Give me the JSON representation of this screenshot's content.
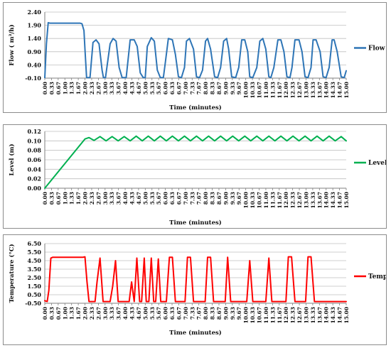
{
  "chart_data": [
    {
      "type": "line",
      "ylabel": "Flow ( m³/h)",
      "xlabel": "Time (minutes)",
      "yticks": [
        "2.40",
        "1.90",
        "1.40",
        "0.90",
        "0.40",
        "-0.10"
      ],
      "ylim": [
        -0.1,
        2.4
      ],
      "xlim": [
        0,
        15
      ],
      "xticks": [
        "0.00",
        "0.33",
        "0.67",
        "1.00",
        "1.33",
        "1.67",
        "2.00",
        "2.33",
        "2.67",
        "3.00",
        "3.33",
        "3.67",
        "4.00",
        "4.33",
        "4.67",
        "5.00",
        "5.33",
        "5.67",
        "6.00",
        "6.33",
        "6.67",
        "7.00",
        "7.33",
        "7.67",
        "8.00",
        "8.33",
        "8.67",
        "9.00",
        "9.33",
        "9.67",
        "10.00",
        "10.33",
        "10.67",
        "11.00",
        "11.33",
        "11.67",
        "12.00",
        "12.33",
        "12.67",
        "13.00",
        "13.33",
        "13.67",
        "14.00",
        "14.33",
        "14.67",
        "15.00"
      ],
      "legend_position": "right",
      "series": [
        {
          "name": "Flow",
          "color": "#2e75b6",
          "x": [
            0.0,
            0.08,
            0.17,
            0.25,
            1.75,
            1.85,
            1.95,
            2.0,
            2.08,
            2.25,
            2.4,
            2.55,
            2.7,
            2.85,
            2.92,
            3.02,
            3.25,
            3.4,
            3.55,
            3.7,
            3.85,
            3.95,
            4.05,
            4.25,
            4.45,
            4.6,
            4.75,
            4.9,
            5.0,
            5.1,
            5.3,
            5.45,
            5.6,
            5.75,
            5.9,
            6.0,
            6.15,
            6.35,
            6.5,
            6.65,
            6.8,
            6.95,
            7.05,
            7.2,
            7.4,
            7.55,
            7.7,
            7.85,
            8.0,
            8.1,
            8.25,
            8.45,
            8.6,
            8.75,
            8.9,
            9.05,
            9.15,
            9.3,
            9.5,
            9.65,
            9.8,
            9.95,
            10.1,
            10.2,
            10.35,
            10.55,
            10.7,
            10.85,
            11.0,
            11.15,
            11.25,
            11.4,
            11.6,
            11.75,
            11.9,
            12.05,
            12.2,
            12.3,
            12.45,
            12.65,
            12.8,
            12.95,
            13.1,
            13.25,
            13.35,
            13.5,
            13.7,
            13.85,
            14.0,
            14.15,
            14.3,
            14.4,
            14.55,
            14.75,
            14.9,
            15.0
          ],
          "values": [
            -0.08,
            1.2,
            2.0,
            1.98,
            1.98,
            1.96,
            1.7,
            1.0,
            -0.08,
            -0.08,
            1.25,
            1.35,
            1.2,
            0.2,
            -0.08,
            -0.08,
            1.2,
            1.4,
            1.3,
            0.3,
            -0.08,
            -0.08,
            -0.08,
            1.35,
            1.35,
            1.1,
            0.1,
            -0.08,
            -0.08,
            1.1,
            1.43,
            1.3,
            0.2,
            -0.08,
            -0.08,
            0.5,
            1.4,
            1.35,
            0.8,
            -0.05,
            -0.08,
            0.3,
            1.3,
            1.4,
            1.0,
            -0.05,
            -0.08,
            0.2,
            1.3,
            1.4,
            1.0,
            -0.05,
            -0.08,
            0.3,
            1.3,
            1.4,
            1.0,
            -0.05,
            -0.08,
            0.3,
            1.35,
            1.35,
            0.9,
            -0.05,
            -0.08,
            0.3,
            1.3,
            1.4,
            1.0,
            -0.05,
            -0.08,
            0.3,
            1.35,
            1.35,
            0.9,
            -0.05,
            -0.08,
            0.3,
            1.35,
            1.35,
            0.9,
            -0.05,
            -0.08,
            0.3,
            1.35,
            1.35,
            0.9,
            -0.05,
            -0.08,
            0.3,
            1.35,
            1.35,
            0.9,
            -0.05,
            -0.08,
            0.18
          ]
        }
      ]
    },
    {
      "type": "line",
      "ylabel": "Level (m)",
      "xlabel": "Time (minutes)",
      "yticks": [
        "0.12",
        "0.10",
        "0.08",
        "0.06",
        "0.04",
        "0.02",
        "0.00"
      ],
      "ylim": [
        0.0,
        0.12
      ],
      "xlim": [
        0,
        15
      ],
      "xticks": [
        "0.00",
        "0.33",
        "0.67",
        "1.00",
        "1.33",
        "1.67",
        "2.00",
        "2.33",
        "2.67",
        "3.00",
        "3.33",
        "3.67",
        "4.00",
        "4.33",
        "4.67",
        "5.00",
        "5.33",
        "5.67",
        "6.00",
        "6.33",
        "6.67",
        "7.00",
        "7.33",
        "7.67",
        "8.00",
        "8.33",
        "8.67",
        "9.00",
        "9.33",
        "9.67",
        "10.00",
        "10.33",
        "10.67",
        "11.00",
        "11.33",
        "11.67",
        "12.00",
        "12.33",
        "12.67",
        "13.00",
        "13.33",
        "13.67",
        "14.00",
        "14.33",
        "14.67",
        "15.00"
      ],
      "legend_position": "right",
      "series": [
        {
          "name": "Level",
          "color": "#00b050",
          "x": [
            0.0,
            2.0,
            2.2,
            2.45,
            2.75,
            3.05,
            3.35,
            3.65,
            3.95,
            4.25,
            4.55,
            4.85,
            5.15,
            5.45,
            5.75,
            6.05,
            6.35,
            6.65,
            6.95,
            7.25,
            7.55,
            7.85,
            8.15,
            8.45,
            8.75,
            9.05,
            9.35,
            9.65,
            9.95,
            10.25,
            10.55,
            10.85,
            11.15,
            11.45,
            11.75,
            12.05,
            12.35,
            12.65,
            12.95,
            13.25,
            13.55,
            13.85,
            14.15,
            14.45,
            14.75,
            15.0
          ],
          "values": [
            0.0,
            0.104,
            0.107,
            0.101,
            0.109,
            0.1,
            0.109,
            0.1,
            0.109,
            0.1,
            0.11,
            0.1,
            0.11,
            0.1,
            0.11,
            0.1,
            0.11,
            0.1,
            0.11,
            0.1,
            0.11,
            0.1,
            0.11,
            0.1,
            0.11,
            0.1,
            0.11,
            0.1,
            0.11,
            0.1,
            0.11,
            0.1,
            0.11,
            0.1,
            0.11,
            0.1,
            0.11,
            0.1,
            0.11,
            0.1,
            0.11,
            0.1,
            0.11,
            0.1,
            0.109,
            0.1
          ]
        }
      ]
    },
    {
      "type": "line",
      "ylabel": "Temperature (°C)",
      "xlabel": "Time (minutes)",
      "yticks": [
        "6.50",
        "5.50",
        "4.50",
        "3.50",
        "2.50",
        "1.50",
        "0.50",
        "-0.50"
      ],
      "ylim": [
        -0.5,
        6.5
      ],
      "xlim": [
        0,
        15
      ],
      "xticks": [
        "0.00",
        "0.33",
        "0.67",
        "1.00",
        "1.33",
        "1.67",
        "2.00",
        "2.33",
        "2.67",
        "3.00",
        "3.33",
        "3.67",
        "4.00",
        "4.33",
        "4.67",
        "5.00",
        "5.33",
        "5.67",
        "6.00",
        "6.33",
        "6.67",
        "7.00",
        "7.33",
        "7.67",
        "8.00",
        "8.33",
        "8.67",
        "9.00",
        "9.33",
        "9.67",
        "10.00",
        "10.33",
        "10.67",
        "11.00",
        "11.33",
        "11.67",
        "12.00",
        "12.33",
        "12.67",
        "13.00",
        "13.33",
        "13.67",
        "14.00",
        "14.33",
        "14.67",
        "15.00"
      ],
      "legend_position": "right",
      "series": [
        {
          "name": "Temp",
          "color": "#ff0000",
          "x": [
            0.0,
            0.12,
            0.2,
            0.3,
            0.4,
            1.9,
            2.0,
            2.1,
            2.2,
            2.5,
            2.6,
            2.75,
            2.9,
            3.25,
            3.38,
            3.52,
            3.65,
            4.2,
            4.32,
            4.45,
            4.58,
            4.72,
            4.82,
            4.95,
            5.05,
            5.18,
            5.3,
            5.42,
            5.52,
            5.65,
            5.77,
            5.9,
            6.05,
            6.2,
            6.35,
            6.5,
            6.62,
            6.98,
            7.1,
            7.25,
            7.4,
            7.55,
            7.7,
            7.98,
            8.1,
            8.25,
            8.4,
            8.55,
            8.7,
            8.98,
            9.1,
            9.25,
            9.4,
            9.55,
            10.05,
            10.2,
            10.35,
            10.5,
            11.0,
            11.15,
            11.3,
            11.45,
            12.0,
            12.12,
            12.28,
            12.45,
            12.6,
            12.98,
            13.1,
            13.25,
            13.42,
            13.58,
            14.0,
            14.5,
            15.0
          ],
          "values": [
            -0.2,
            -0.3,
            1.0,
            4.8,
            4.9,
            4.9,
            4.95,
            2.0,
            -0.3,
            -0.3,
            2.0,
            4.8,
            -0.3,
            -0.3,
            1.5,
            4.5,
            -0.3,
            -0.3,
            2.0,
            -0.3,
            4.8,
            -0.3,
            -0.3,
            4.8,
            -0.3,
            -0.3,
            4.8,
            -0.3,
            -0.3,
            4.7,
            -0.3,
            -0.3,
            -0.3,
            4.9,
            4.9,
            -0.3,
            -0.3,
            -0.3,
            4.9,
            4.9,
            -0.3,
            -0.3,
            -0.3,
            -0.3,
            4.9,
            4.9,
            -0.3,
            -0.3,
            -0.3,
            -0.3,
            4.9,
            -0.3,
            -0.3,
            -0.3,
            -0.3,
            4.5,
            -0.3,
            -0.3,
            -0.3,
            4.8,
            -0.3,
            -0.3,
            -0.3,
            4.95,
            4.95,
            -0.3,
            -0.3,
            -0.3,
            4.95,
            4.95,
            -0.3,
            -0.3,
            -0.3,
            -0.3,
            -0.3
          ]
        }
      ]
    }
  ]
}
